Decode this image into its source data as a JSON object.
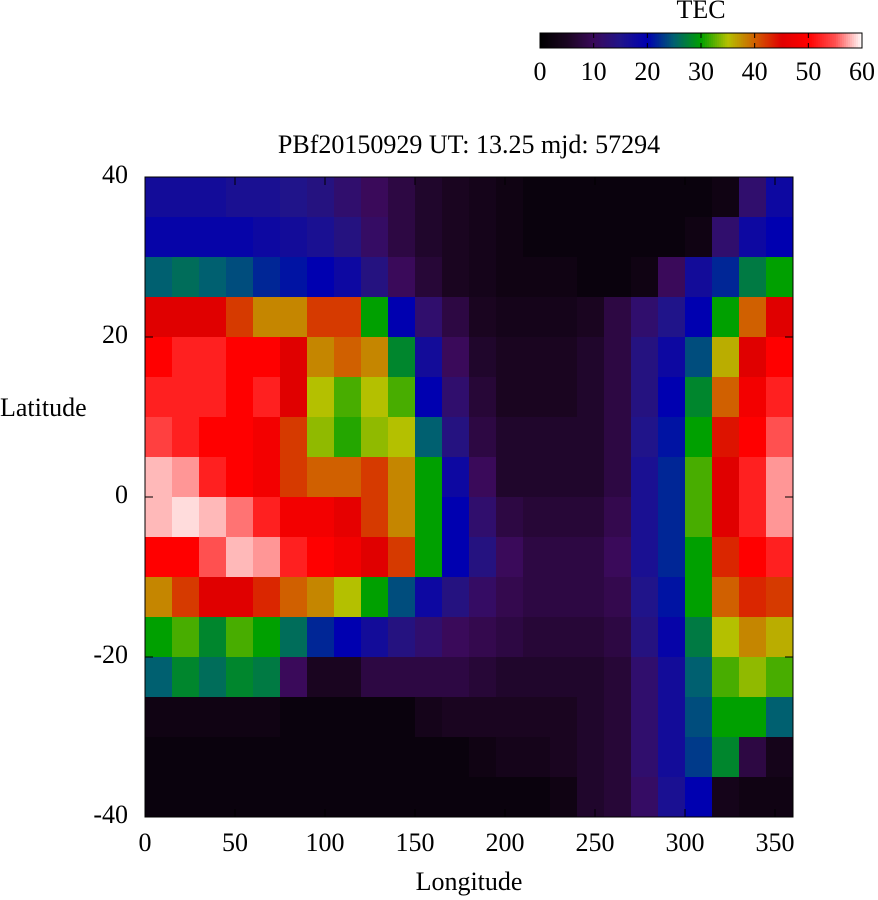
{
  "chart_data": {
    "type": "heatmap",
    "title": "PBf20150929  UT: 13.25  mjd: 57294",
    "x_label": "Longitude",
    "y_label": "Latitude",
    "colorbar_label": "TEC",
    "xlim": [
      0,
      360
    ],
    "xticks": [
      0,
      50,
      100,
      150,
      200,
      250,
      300,
      350
    ],
    "ylim": [
      -40,
      40
    ],
    "yticks": [
      -40,
      -20,
      0,
      20,
      40
    ],
    "zlim": [
      0,
      60
    ],
    "zticks": [
      0,
      10,
      20,
      30,
      40,
      50,
      60
    ],
    "colormap": [
      "#000000",
      "#1a0520",
      "#3a0a5a",
      "#20148a",
      "#0000b0",
      "#006070",
      "#00a000",
      "#b4c000",
      "#d06000",
      "#e00000",
      "#ff0000",
      "#ff5050",
      "#ffffff"
    ],
    "x": [
      7.5,
      22.5,
      37.5,
      52.5,
      67.5,
      82.5,
      97.5,
      112.5,
      127.5,
      142.5,
      157.5,
      172.5,
      187.5,
      202.5,
      217.5,
      232.5,
      247.5,
      262.5,
      277.5,
      292.5,
      307.5,
      322.5,
      337.5,
      352.5
    ],
    "y": [
      37.5,
      32.5,
      27.5,
      22.5,
      17.5,
      12.5,
      7.5,
      2.5,
      -2.5,
      -7.5,
      -12.5,
      -17.5,
      -22.5,
      -27.5,
      -32.5,
      -37.5
    ],
    "z": [
      [
        17,
        17,
        17,
        16,
        16,
        15,
        14,
        12,
        10,
        8,
        6,
        5,
        4,
        3,
        2,
        2,
        2,
        2,
        2,
        2,
        2,
        3,
        12,
        18
      ],
      [
        19,
        19,
        19,
        19,
        18,
        17,
        16,
        14,
        11,
        8,
        6,
        5,
        4,
        3,
        2,
        2,
        2,
        2,
        2,
        2,
        3,
        12,
        18,
        20
      ],
      [
        25,
        26,
        25,
        24,
        22,
        21,
        20,
        18,
        14,
        10,
        7,
        5,
        4,
        3,
        3,
        3,
        2,
        2,
        3,
        10,
        17,
        22,
        27,
        30
      ],
      [
        45,
        45,
        45,
        42,
        38,
        38,
        42,
        42,
        30,
        20,
        12,
        8,
        5,
        4,
        4,
        4,
        5,
        8,
        12,
        15,
        20,
        30,
        40,
        45
      ],
      [
        50,
        52,
        52,
        50,
        50,
        45,
        38,
        40,
        38,
        28,
        17,
        10,
        6,
        5,
        5,
        5,
        6,
        8,
        14,
        18,
        24,
        36,
        45,
        50
      ],
      [
        52,
        52,
        52,
        50,
        52,
        45,
        35,
        32,
        35,
        32,
        20,
        12,
        7,
        5,
        5,
        5,
        6,
        8,
        14,
        20,
        28,
        40,
        48,
        52
      ],
      [
        54,
        52,
        50,
        50,
        48,
        42,
        34,
        31,
        34,
        35,
        25,
        14,
        8,
        6,
        6,
        6,
        6,
        8,
        15,
        21,
        30,
        44,
        50,
        55
      ],
      [
        58,
        57,
        52,
        50,
        48,
        42,
        40,
        40,
        42,
        38,
        30,
        18,
        10,
        6,
        6,
        6,
        6,
        8,
        16,
        22,
        32,
        45,
        52,
        57
      ],
      [
        58,
        59,
        58,
        56,
        52,
        48,
        48,
        46,
        42,
        38,
        30,
        20,
        12,
        8,
        7,
        7,
        7,
        9,
        16,
        22,
        32,
        45,
        52,
        57
      ],
      [
        50,
        50,
        55,
        58,
        57,
        52,
        50,
        48,
        45,
        42,
        30,
        20,
        14,
        10,
        8,
        8,
        8,
        10,
        16,
        22,
        30,
        43,
        50,
        52
      ],
      [
        38,
        42,
        45,
        45,
        43,
        40,
        38,
        35,
        30,
        24,
        18,
        14,
        11,
        9,
        8,
        8,
        8,
        9,
        15,
        21,
        30,
        40,
        43,
        42
      ],
      [
        30,
        32,
        28,
        32,
        30,
        26,
        22,
        20,
        17,
        14,
        12,
        10,
        9,
        8,
        7,
        7,
        7,
        8,
        14,
        19,
        27,
        35,
        38,
        36
      ],
      [
        25,
        28,
        26,
        28,
        27,
        10,
        5,
        5,
        8,
        8,
        8,
        8,
        7,
        6,
        6,
        6,
        6,
        7,
        12,
        17,
        25,
        32,
        34,
        32
      ],
      [
        3,
        3,
        3,
        3,
        3,
        2,
        2,
        2,
        2,
        2,
        4,
        5,
        5,
        5,
        5,
        5,
        6,
        7,
        12,
        17,
        24,
        30,
        30,
        25
      ],
      [
        2,
        2,
        2,
        2,
        2,
        2,
        2,
        2,
        2,
        2,
        2,
        2,
        3,
        4,
        4,
        5,
        6,
        7,
        12,
        17,
        23,
        28,
        8,
        4
      ],
      [
        2,
        2,
        2,
        2,
        2,
        2,
        2,
        2,
        2,
        2,
        2,
        2,
        2,
        2,
        2,
        3,
        6,
        7,
        11,
        16,
        20,
        4,
        3,
        3
      ]
    ]
  }
}
